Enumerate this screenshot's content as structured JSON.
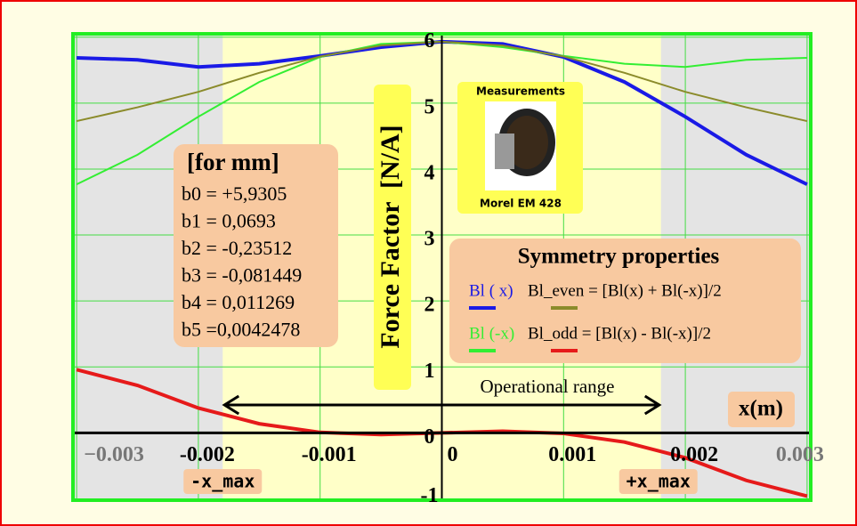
{
  "chart_data": {
    "type": "line",
    "y_label": "Force Factor  [N/A]",
    "x_label": "x(m)",
    "x": [
      -0.003,
      -0.0025,
      -0.002,
      -0.0015,
      -0.001,
      -0.0005,
      0,
      0.0005,
      0.001,
      0.0015,
      0.002,
      0.0025,
      0.003
    ],
    "series": [
      {
        "name": "Bl ( x)",
        "color": "#1a1ae6",
        "values": [
          5.686,
          5.656,
          5.547,
          5.597,
          5.715,
          5.848,
          5.931,
          5.897,
          5.699,
          5.32,
          4.793,
          4.217,
          3.768
        ]
      },
      {
        "name": "Bl (-x)",
        "color": "#33ee33",
        "values": [
          3.768,
          4.217,
          4.793,
          5.32,
          5.699,
          5.897,
          5.931,
          5.848,
          5.715,
          5.597,
          5.547,
          5.656,
          5.686
        ]
      },
      {
        "name": "Bl_even = [Bl(x) + Bl(-x)]/2",
        "color": "#8b8b2b",
        "values": [
          4.727,
          4.936,
          5.17,
          5.459,
          5.707,
          5.873,
          5.931,
          5.873,
          5.707,
          5.459,
          5.17,
          4.936,
          4.727
        ]
      },
      {
        "name": "Bl_odd = [Bl(x) - Bl(-x)]/2",
        "color": "#e61a1a",
        "values": [
          0.959,
          0.72,
          0.377,
          0.139,
          0.008,
          -0.025,
          0,
          0.025,
          -0.008,
          -0.139,
          -0.377,
          -0.72,
          -0.959
        ]
      }
    ],
    "xlim": [
      -0.00303,
      0.00303
    ],
    "ylim": [
      -1.02,
      6.05
    ],
    "xticks": [
      {
        "value": -0.003,
        "label": "−0.003"
      },
      -0.002,
      -0.001,
      0,
      0.001,
      0.002,
      0.003
    ],
    "yticks": [
      -1,
      0,
      1,
      2,
      3,
      4,
      5,
      6
    ],
    "grid": true,
    "legend_title": "Symmetry properties",
    "x_max": {
      "value": 0.0018,
      "labels": [
        "-x_max",
        "+x_max"
      ]
    },
    "operational_range": "Operational range",
    "coefficients": {
      "title": "[for mm]",
      "lines": [
        "b0 = +5,9305",
        "b1 = 0,0693",
        "b2 = -0,23512",
        "b3 = -0,081449",
        "b4 = 0,011269",
        "b5 =0,0042478"
      ]
    },
    "photo": {
      "title": "Measurements",
      "caption": "Morel EM 428"
    }
  }
}
